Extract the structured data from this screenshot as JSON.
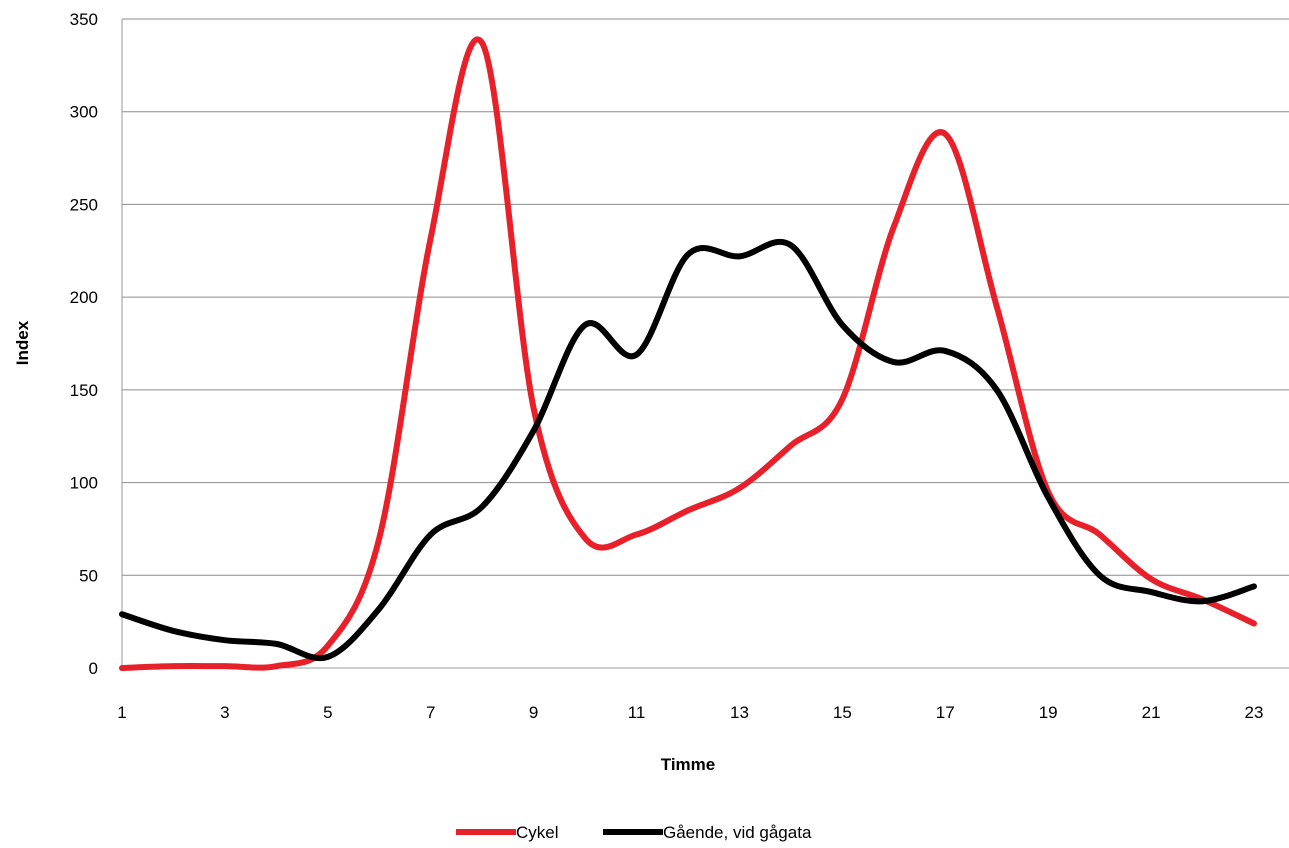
{
  "chart_data": {
    "type": "line",
    "title": "",
    "xlabel": "Timme",
    "ylabel": "Index",
    "xlim": [
      1,
      23
    ],
    "ylim": [
      0,
      350
    ],
    "x_ticks": [
      1,
      3,
      5,
      7,
      9,
      11,
      13,
      15,
      17,
      19,
      21,
      23
    ],
    "y_ticks": [
      0,
      50,
      100,
      150,
      200,
      250,
      300,
      350
    ],
    "grid": "horizontal",
    "legend_position": "bottom",
    "x": [
      1,
      2,
      3,
      4,
      5,
      6,
      7,
      8,
      9,
      10,
      11,
      12,
      13,
      14,
      15,
      16,
      17,
      18,
      19,
      20,
      21,
      22,
      23
    ],
    "series": [
      {
        "name": "Cykel",
        "color": "#e8202a",
        "values": [
          0,
          1,
          1,
          1,
          12,
          70,
          232,
          337,
          140,
          70,
          72,
          85,
          97,
          120,
          145,
          238,
          288,
          195,
          95,
          72,
          48,
          37,
          24
        ]
      },
      {
        "name": "Gående, vid gågata",
        "color": "#000000",
        "values": [
          29,
          20,
          15,
          13,
          6,
          32,
          72,
          87,
          128,
          185,
          169,
          223,
          222,
          228,
          185,
          165,
          171,
          150,
          92,
          50,
          41,
          36,
          44
        ]
      }
    ]
  }
}
